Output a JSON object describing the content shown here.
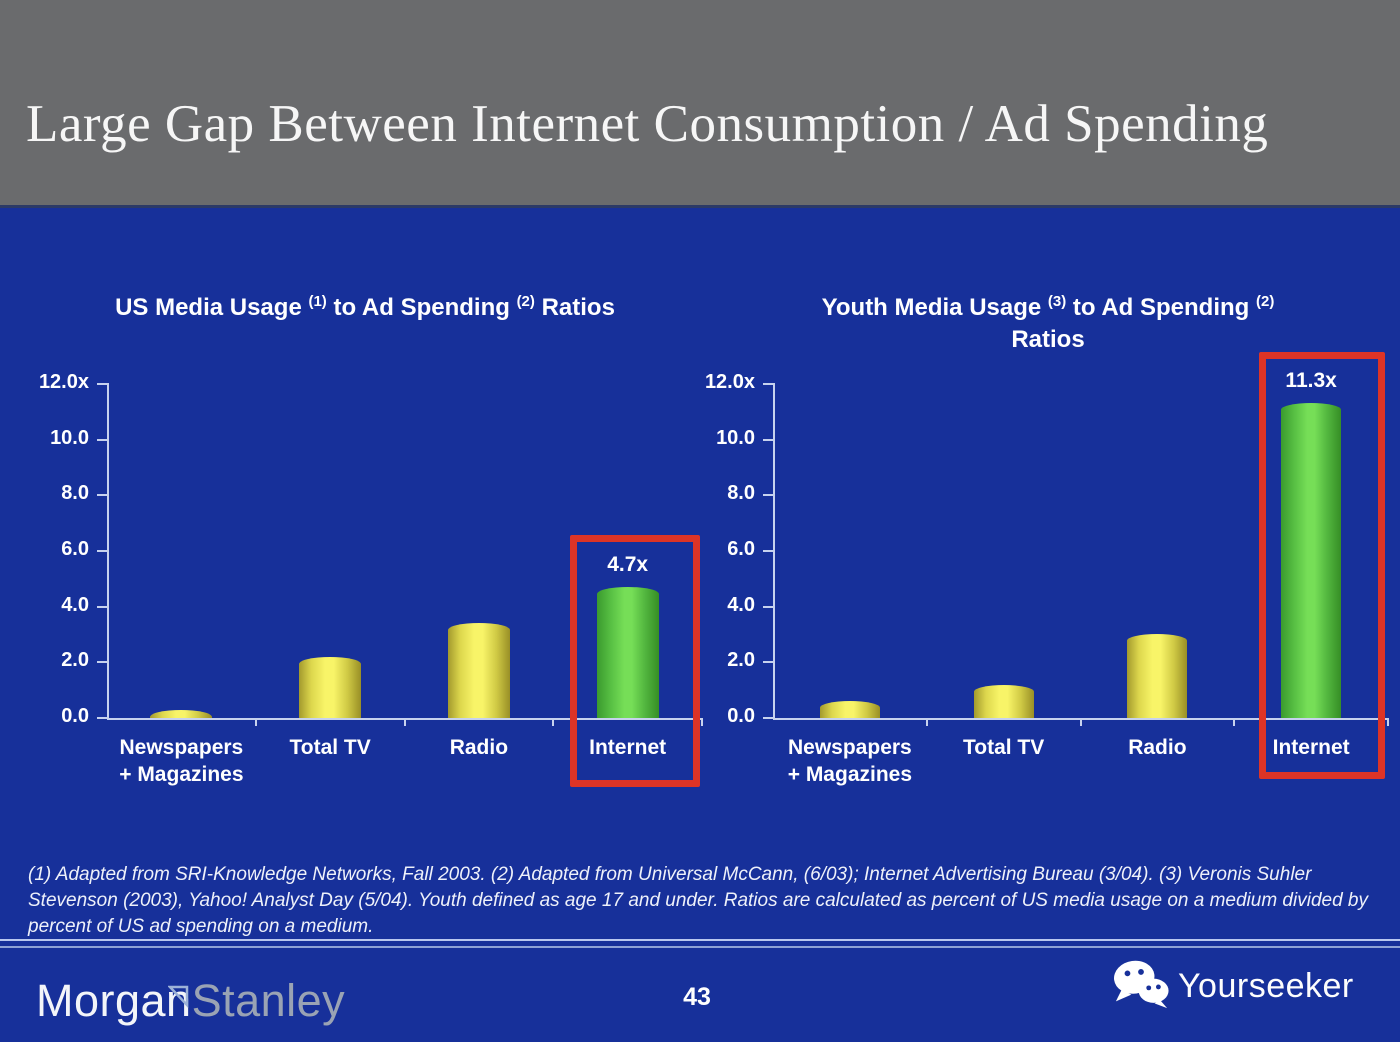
{
  "header": {
    "title": "Large Gap Between Internet Consumption / Ad Spending"
  },
  "chart_data": [
    {
      "type": "bar",
      "title": "US Media Usage (1) to Ad Spending (2) Ratios",
      "title_lines": [
        [
          {
            "text": "US Media Usage "
          },
          {
            "sup": "(1)"
          },
          {
            "text": " to Ad Spending "
          },
          {
            "sup": "(2)"
          },
          {
            "text": " Ratios"
          }
        ]
      ],
      "categories": [
        "Newspapers + Magazines",
        "Total TV",
        "Radio",
        "Internet"
      ],
      "category_lines": [
        [
          "Newspapers",
          "+ Magazines"
        ],
        [
          "Total TV"
        ],
        [
          "Radio"
        ],
        [
          "Internet"
        ]
      ],
      "values": [
        0.3,
        2.2,
        3.4,
        4.7
      ],
      "bar_colors": [
        "yellow",
        "yellow",
        "yellow",
        "green"
      ],
      "value_labels": [
        null,
        null,
        null,
        "4.7x"
      ],
      "ylim": [
        0,
        12
      ],
      "yticks": [
        "12.0x",
        "10.0",
        "8.0",
        "6.0",
        "4.0",
        "2.0",
        "0.0"
      ],
      "xlabel": "",
      "ylabel": "",
      "grid": false,
      "legend": "none",
      "highlighted_category": "Internet"
    },
    {
      "type": "bar",
      "title": "Youth Media Usage (3) to Ad Spending (2) Ratios",
      "title_lines": [
        [
          {
            "text": "Youth Media Usage "
          },
          {
            "sup": "(3)"
          },
          {
            "text": " to Ad Spending "
          },
          {
            "sup": "(2)"
          }
        ],
        [
          {
            "text": "Ratios"
          }
        ]
      ],
      "categories": [
        "Newspapers + Magazines",
        "Total TV",
        "Radio",
        "Internet"
      ],
      "category_lines": [
        [
          "Newspapers",
          "+ Magazines"
        ],
        [
          "Total TV"
        ],
        [
          "Radio"
        ],
        [
          "Internet"
        ]
      ],
      "values": [
        0.6,
        1.2,
        3.0,
        11.3
      ],
      "bar_colors": [
        "yellow",
        "yellow",
        "yellow",
        "green"
      ],
      "value_labels": [
        null,
        null,
        null,
        "11.3x"
      ],
      "ylim": [
        0,
        12
      ],
      "yticks": [
        "12.0x",
        "10.0",
        "8.0",
        "6.0",
        "4.0",
        "2.0",
        "0.0"
      ],
      "xlabel": "",
      "ylabel": "",
      "grid": false,
      "legend": "none",
      "highlighted_category": "Internet"
    }
  ],
  "footnote": "(1) Adapted from SRI-Knowledge Networks, Fall 2003.  (2) Adapted from Universal McCann, (6/03); Internet Advertising Bureau (3/04). (3) Veronis Suhler Stevenson (2003), Yahoo! Analyst Day (5/04).  Youth defined as age 17 and under.  Ratios are calculated as percent of US media usage on a medium divided by percent of US ad spending on a medium.",
  "footer": {
    "morgan": "Morgan",
    "stanley": "Stanley",
    "page_number": "43",
    "watermark": "Yourseeker",
    "icons": {
      "watermark_icon": "wechat-icon",
      "logo_icon": "morgan-stanley-triangle-icon"
    }
  },
  "colors": {
    "background_blue": "#17309a",
    "header_gray": "#6a6b6d",
    "bar_yellow": "#f8f468",
    "bar_green": "#76de57",
    "highlight_red": "#dd3426",
    "axis_light": "#c7d2ee",
    "stanley_gray": "#9aa3b4"
  }
}
